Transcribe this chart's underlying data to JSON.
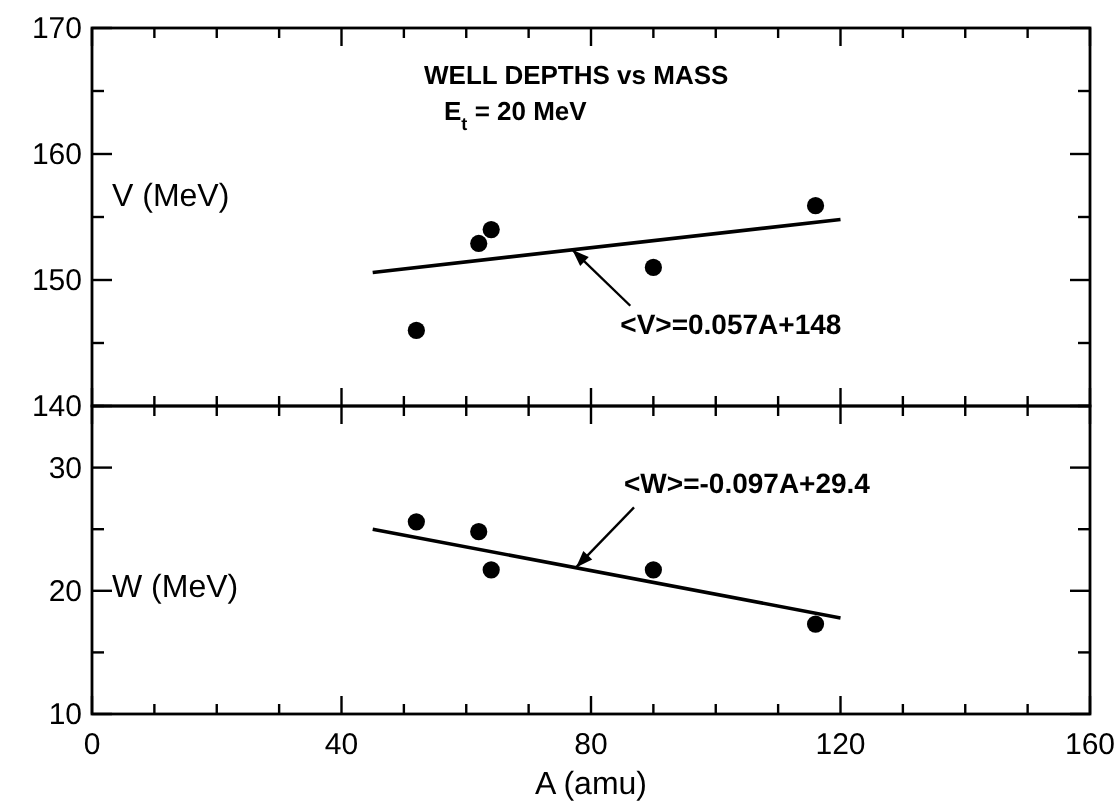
{
  "chart_data": [
    {
      "type": "scatter",
      "title": "WELL DEPTHS vs MASS",
      "subtitle": "E$_{t}$ = 20 MeV",
      "ylabel": "V (MeV)",
      "xlim": [
        0,
        160
      ],
      "ylim": [
        140,
        170
      ],
      "tick_labels": "y",
      "marker": "circle",
      "grid": false,
      "xticks": [
        0,
        {
          "value": 10,
          "label": null
        },
        {
          "value": 20,
          "label": null
        },
        {
          "value": 30,
          "label": null
        },
        40,
        {
          "value": 50,
          "label": null
        },
        {
          "value": 60,
          "label": null
        },
        {
          "value": 70,
          "label": null
        },
        80,
        {
          "value": 90,
          "label": null
        },
        {
          "value": 100,
          "label": null
        },
        {
          "value": 110,
          "label": null
        },
        120,
        {
          "value": 130,
          "label": null
        },
        {
          "value": 140,
          "label": null
        },
        {
          "value": 150,
          "label": null
        },
        160
      ],
      "yticks": [
        140,
        {
          "value": 145,
          "label": null
        },
        150,
        {
          "value": 155,
          "label": null
        },
        160,
        {
          "value": 165,
          "label": null
        },
        170
      ],
      "series": [
        {
          "color": "#000000",
          "x": [
            52,
            62,
            64,
            90,
            116
          ],
          "values": [
            146.0,
            152.9,
            154.0,
            151.0,
            155.9
          ]
        },
        {
          "type": "line",
          "color": "#000000",
          "x": [
            45,
            120
          ],
          "values": [
            150.6,
            154.8
          ],
          "marker": "none",
          "line_style": "solid"
        }
      ],
      "annotations": [
        {
          "text": "<V>=0.057A+148",
          "x": 77,
          "y": 152.4
        }
      ]
    },
    {
      "type": "scatter",
      "xlabel": "A (amu)",
      "ylabel": "W (MeV)",
      "xlim": [
        0,
        160
      ],
      "ylim": [
        10,
        35
      ],
      "marker": "circle",
      "grid": false,
      "xticks": [
        0,
        {
          "value": 10,
          "label": null
        },
        {
          "value": 20,
          "label": null
        },
        {
          "value": 30,
          "label": null
        },
        40,
        {
          "value": 50,
          "label": null
        },
        {
          "value": 60,
          "label": null
        },
        {
          "value": 70,
          "label": null
        },
        80,
        {
          "value": 90,
          "label": null
        },
        {
          "value": 100,
          "label": null
        },
        {
          "value": 110,
          "label": null
        },
        120,
        {
          "value": 130,
          "label": null
        },
        {
          "value": 140,
          "label": null
        },
        {
          "value": 150,
          "label": null
        },
        160
      ],
      "yticks": [
        10,
        {
          "value": 15,
          "label": null
        },
        20,
        {
          "value": 25,
          "label": null
        },
        30,
        {
          "value": 35,
          "label": null
        }
      ],
      "series": [
        {
          "color": "#000000",
          "x": [
            52,
            62,
            64,
            90,
            116
          ],
          "values": [
            25.6,
            24.8,
            21.7,
            21.7,
            17.3
          ]
        },
        {
          "type": "line",
          "color": "#000000",
          "x": [
            45,
            120
          ],
          "values": [
            25.0,
            17.8
          ],
          "marker": "none",
          "line_style": "solid"
        }
      ],
      "annotations": [
        {
          "text": "<W>=-0.097A+29.4",
          "x": 77.6,
          "y": 21.9
        }
      ]
    }
  ]
}
